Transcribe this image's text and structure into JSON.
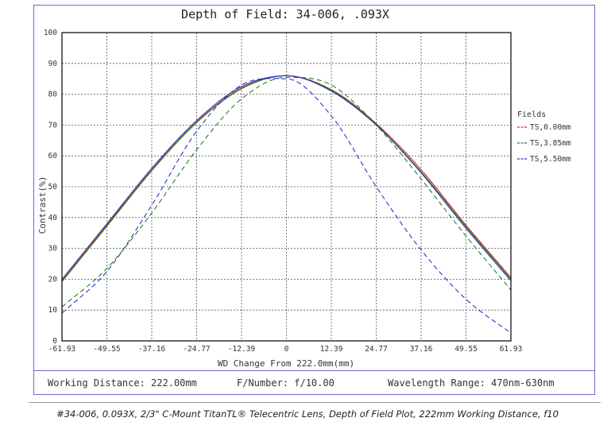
{
  "chart_data": {
    "type": "line",
    "title": "Depth of Field: 34-006, .093X",
    "xlabel": "WD Change From 222.0mm(mm)",
    "ylabel": "Contrast(%)",
    "xlim": [
      -61.93,
      61.93
    ],
    "ylim": [
      0,
      100
    ],
    "x_ticks": [
      "-61.93",
      "-49.55",
      "-37.16",
      "-24.77",
      "-12.39",
      "0",
      "12.39",
      "24.77",
      "37.16",
      "49.55",
      "61.93"
    ],
    "y_ticks": [
      "0",
      "10",
      "20",
      "30",
      "40",
      "50",
      "60",
      "70",
      "80",
      "90",
      "100"
    ],
    "grid": true,
    "legend_title": "Fields",
    "legend_position": "right",
    "x": [
      -61.93,
      -49.55,
      -37.16,
      -24.77,
      -12.39,
      0,
      12.39,
      24.77,
      37.16,
      49.55,
      61.93
    ],
    "series": [
      {
        "name": "TS,0.00mm",
        "color": "#d03020",
        "dash": "solid",
        "style": "tangential",
        "values": [
          19.5,
          37.5,
          55.5,
          71,
          82,
          86,
          81.5,
          70.5,
          55.5,
          37.5,
          20.5
        ]
      },
      {
        "name": "TS,0.00mm",
        "color": "#d03020",
        "dash": "dashed",
        "style": "sagittal",
        "values": [
          19.5,
          37.5,
          55.5,
          71,
          82,
          86,
          81.5,
          70.5,
          55.5,
          37.5,
          20.5
        ]
      },
      {
        "name": "TS,3.85mm",
        "color": "#208020",
        "dash": "solid",
        "style": "tangential",
        "values": [
          19.2,
          37.2,
          55.2,
          70.8,
          81.8,
          86,
          81.3,
          70.2,
          54.8,
          37,
          20
        ]
      },
      {
        "name": "TS,3.85mm",
        "color": "#208020",
        "dash": "dashed",
        "style": "sagittal",
        "values": [
          11,
          23.5,
          41.5,
          62,
          78.5,
          85.5,
          83,
          70,
          52.5,
          34,
          16.5
        ]
      },
      {
        "name": "TS,5.50mm",
        "color": "#3030c8",
        "dash": "solid",
        "style": "tangential",
        "values": [
          20,
          38,
          56,
          71.5,
          82.5,
          86,
          81,
          70,
          54.5,
          36.5,
          19.5
        ]
      },
      {
        "name": "TS,5.50mm",
        "color": "#3030c8",
        "dash": "dashed",
        "style": "sagittal",
        "values": [
          9,
          22.5,
          44,
          68,
          83,
          85,
          73,
          50,
          29.5,
          13.5,
          2.5
        ]
      }
    ]
  },
  "footer": {
    "working_distance": "Working Distance: 222.00mm",
    "f_number": "F/Number: f/10.00",
    "wavelength": "Wavelength Range: 470nm-630nm"
  },
  "caption": "#34-006, 0.093X, 2/3\" C-Mount TitanTL® Telecentric Lens, Depth of Field Plot, 222mm Working Distance, f10"
}
